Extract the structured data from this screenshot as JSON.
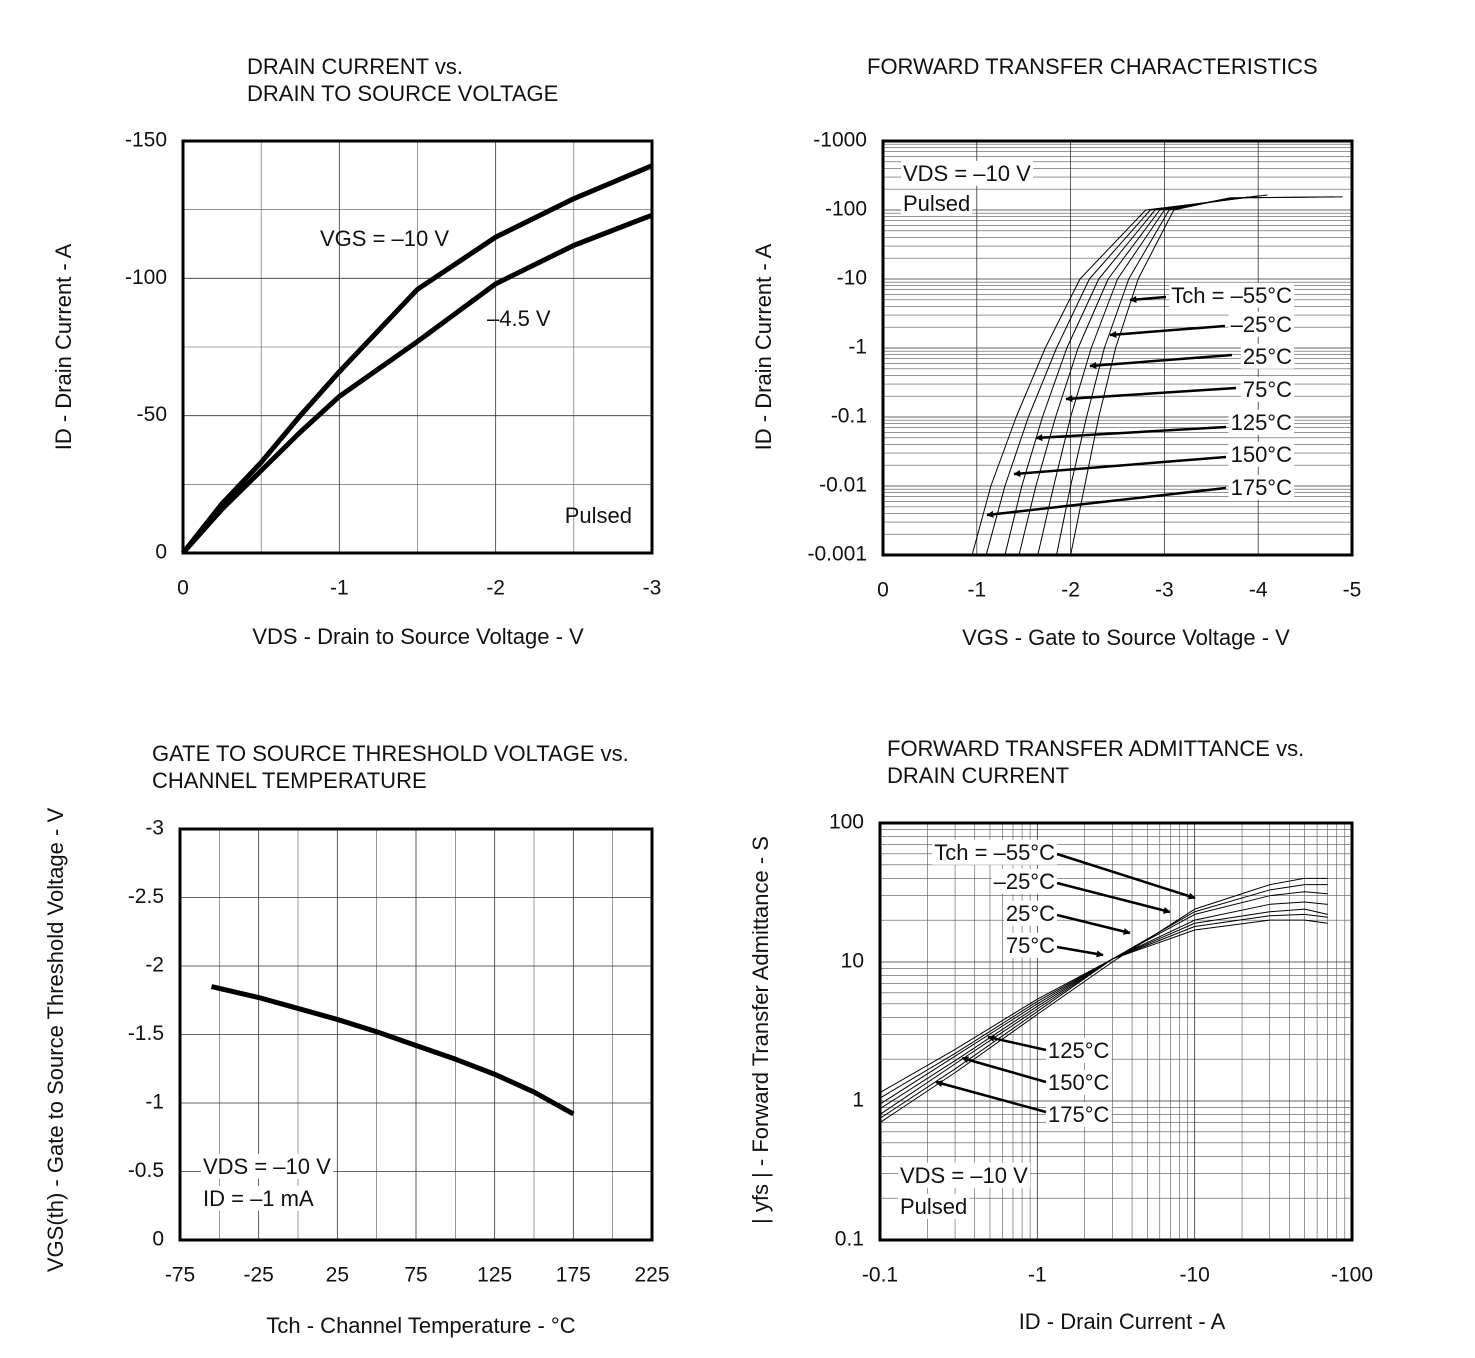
{
  "chart_data": [
    {
      "type": "line",
      "title": [
        "DRAIN CURRENT vs.",
        "DRAIN TO SOURCE VOLTAGE"
      ],
      "x_label": "VDS - Drain to Source Voltage - V",
      "y_label": "ID - Drain Current - A",
      "xlim": [
        0,
        -3
      ],
      "ylim": [
        0,
        -150
      ],
      "xticks": [
        0,
        -1,
        -2,
        -3
      ],
      "yticks": [
        0,
        -50,
        -100,
        -150
      ],
      "grid": true,
      "line_width": 5,
      "x": [
        0,
        -0.25,
        -0.5,
        -0.75,
        -1,
        -1.5,
        -2,
        -2.5,
        -3
      ],
      "series": [
        {
          "name": "VGS = –10 V",
          "color": "#000000",
          "values": [
            0,
            -18,
            -33,
            -50,
            -66,
            -96,
            -115,
            -129,
            -141
          ]
        },
        {
          "name": "–4.5 V",
          "color": "#000000",
          "values": [
            0,
            -16,
            -30,
            -44,
            -57,
            -77,
            -98,
            -112,
            -123
          ]
        }
      ],
      "annotations": [
        "Pulsed"
      ]
    },
    {
      "type": "line",
      "title": [
        "FORWARD TRANSFER CHARACTERISTICS"
      ],
      "x_label": "VGS - Gate to Source Voltage - V",
      "y_label": "ID - Drain Current - A",
      "xlim": [
        0,
        -5
      ],
      "ylim": [
        -0.001,
        -1000
      ],
      "xticks": [
        0,
        -1,
        -2,
        -3,
        -4,
        -5
      ],
      "yticks": [
        -0.001,
        -0.01,
        -0.1,
        -1,
        -10,
        -100,
        -1000
      ],
      "ylog": true,
      "grid": true,
      "line_width": 1,
      "series": [
        {
          "name": "Tch = –55°C",
          "color": "#000000",
          "x": [
            -2.0,
            -2.15,
            -2.3,
            -2.48,
            -2.72,
            -3.1,
            -3.7,
            -4.8
          ],
          "values": [
            -0.001,
            -0.01,
            -0.1,
            -1,
            -10,
            -100,
            -150,
            -155
          ]
        },
        {
          "name": "–25°C",
          "color": "#000000",
          "x": [
            -1.85,
            -2.0,
            -2.17,
            -2.36,
            -2.62,
            -3.05,
            -3.7,
            -4.9
          ],
          "values": [
            -0.001,
            -0.01,
            -0.1,
            -1,
            -10,
            -100,
            -150,
            -155
          ]
        },
        {
          "name": "25°C",
          "color": "#000000",
          "x": [
            -1.65,
            -1.82,
            -2.0,
            -2.22,
            -2.5,
            -3.0,
            -3.75
          ],
          "values": [
            -0.001,
            -0.01,
            -0.1,
            -1,
            -10,
            -100,
            -150
          ]
        },
        {
          "name": "75°C",
          "color": "#000000",
          "x": [
            -1.45,
            -1.63,
            -1.84,
            -2.08,
            -2.4,
            -2.95,
            -3.8
          ],
          "values": [
            -0.001,
            -0.01,
            -0.1,
            -1,
            -10,
            -100,
            -150
          ]
        },
        {
          "name": "125°C",
          "color": "#000000",
          "x": [
            -1.3,
            -1.48,
            -1.7,
            -1.96,
            -2.3,
            -2.9,
            -3.9
          ],
          "values": [
            -0.001,
            -0.01,
            -0.1,
            -1,
            -10,
            -100,
            -155
          ]
        },
        {
          "name": "150°C",
          "color": "#000000",
          "x": [
            -1.1,
            -1.3,
            -1.55,
            -1.85,
            -2.2,
            -2.85,
            -4.0
          ],
          "values": [
            -0.001,
            -0.01,
            -0.1,
            -1,
            -10,
            -100,
            -160
          ]
        },
        {
          "name": "175°C",
          "color": "#000000",
          "x": [
            -0.95,
            -1.15,
            -1.42,
            -1.73,
            -2.1,
            -2.8,
            -4.1
          ],
          "values": [
            -0.001,
            -0.01,
            -0.1,
            -1,
            -10,
            -100,
            -165
          ]
        }
      ],
      "annotations": [
        "VDS = –10 V",
        "Pulsed"
      ]
    },
    {
      "type": "line",
      "title": [
        "GATE TO SOURCE THRESHOLD VOLTAGE vs.",
        "CHANNEL TEMPERATURE"
      ],
      "x_label": "Tch - Channel Temperature - °C",
      "y_label": "VGS(th) - Gate to Source Threshold Voltage - V",
      "xlim": [
        -75,
        225
      ],
      "ylim": [
        0,
        -3
      ],
      "xticks": [
        -75,
        -25,
        25,
        75,
        125,
        175,
        225
      ],
      "yticks": [
        0,
        -0.5,
        -1,
        -1.5,
        -2,
        -2.5,
        -3
      ],
      "grid": true,
      "line_width": 5,
      "x": [
        -55,
        -25,
        0,
        25,
        50,
        75,
        100,
        125,
        150,
        175
      ],
      "series": [
        {
          "color": "#000000",
          "values": [
            -1.85,
            -1.77,
            -1.69,
            -1.61,
            -1.52,
            -1.42,
            -1.32,
            -1.21,
            -1.08,
            -0.92
          ]
        }
      ],
      "annotations": [
        "VDS = –10 V",
        "ID = –1 mA"
      ]
    },
    {
      "type": "line",
      "title": [
        "FORWARD TRANSFER ADMITTANCE vs.",
        "DRAIN CURRENT"
      ],
      "x_label": "ID - Drain Current - A",
      "y_label": "| yfs | - Forward Transfer Admittance - S",
      "xlim": [
        -0.1,
        -100
      ],
      "ylim": [
        0.1,
        100
      ],
      "xticks": [
        -0.1,
        -1,
        -10,
        -100
      ],
      "yticks": [
        0.1,
        1,
        10,
        100
      ],
      "xlog": true,
      "ylog": true,
      "grid": true,
      "line_width": 1,
      "x": [
        -0.1,
        -0.3,
        -1,
        -3,
        -10,
        -30,
        -50,
        -70
      ],
      "series": [
        {
          "name": "Tch = –55°C",
          "color": "#000000",
          "values": [
            0.7,
            1.6,
            4.2,
            10,
            24,
            36,
            40,
            40
          ]
        },
        {
          "name": "–25°C",
          "color": "#000000",
          "values": [
            0.75,
            1.7,
            4.4,
            10.5,
            23,
            33,
            36,
            36
          ]
        },
        {
          "name": "25°C",
          "color": "#000000",
          "values": [
            0.8,
            1.85,
            4.6,
            10.5,
            22,
            30,
            32,
            31
          ]
        },
        {
          "name": "75°C",
          "color": "#000000",
          "values": [
            0.88,
            1.95,
            4.8,
            10.5,
            20,
            26,
            27,
            26
          ]
        },
        {
          "name": "125°C",
          "color": "#000000",
          "values": [
            0.95,
            2.1,
            5,
            10.5,
            19,
            23,
            24,
            22
          ]
        },
        {
          "name": "150°C",
          "color": "#000000",
          "values": [
            1.05,
            2.2,
            5.2,
            10.5,
            18,
            21.5,
            22,
            21
          ]
        },
        {
          "name": "175°C",
          "color": "#000000",
          "values": [
            1.15,
            2.35,
            5.4,
            10.5,
            17,
            20,
            20,
            19
          ]
        }
      ],
      "annotations": [
        "VDS = –10 V",
        "Pulsed"
      ]
    }
  ]
}
